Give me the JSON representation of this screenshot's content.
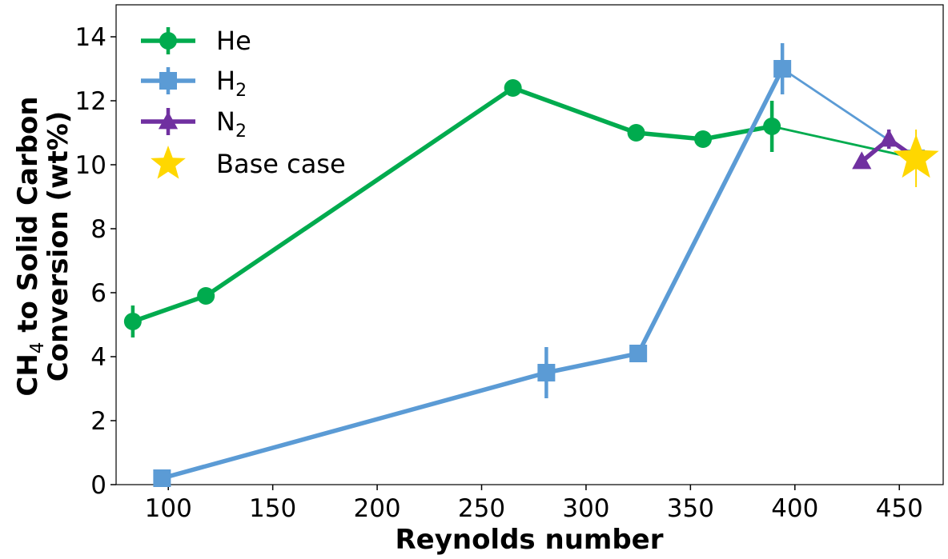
{
  "chart_data": {
    "type": "line",
    "xlabel": "Reynolds number",
    "ylabel_line1_parts": [
      "CH",
      "4",
      " to Solid Carbon"
    ],
    "ylabel_line2": "Conversion (wt%)",
    "xlim": [
      75,
      471
    ],
    "ylim": [
      0,
      15
    ],
    "xticks": [
      100,
      150,
      200,
      250,
      300,
      350,
      400,
      450
    ],
    "yticks": [
      0,
      2,
      4,
      6,
      8,
      10,
      12,
      14
    ],
    "grid": false,
    "legend_position": "top-left",
    "series": [
      {
        "key": "he",
        "name": "He",
        "color": "#00ab4e",
        "marker": "circle",
        "points": [
          {
            "x": 83,
            "y": 5.1,
            "err": 0.5
          },
          {
            "x": 118,
            "y": 5.9,
            "err": 0
          },
          {
            "x": 265,
            "y": 12.4,
            "err": 0
          },
          {
            "x": 324,
            "y": 11.0,
            "err": 0
          },
          {
            "x": 356,
            "y": 10.8,
            "err": 0
          },
          {
            "x": 389,
            "y": 11.2,
            "err": 0.8
          },
          {
            "x": 458,
            "y": 10.2,
            "err": 0
          }
        ],
        "segment_widths": [
          "thick",
          "thick",
          "thick",
          "thick",
          "thick",
          "thin"
        ]
      },
      {
        "key": "h2",
        "name": "H",
        "name_sub": "2",
        "color": "#5b9bd5",
        "marker": "square",
        "points": [
          {
            "x": 97,
            "y": 0.2,
            "err": 0
          },
          {
            "x": 281,
            "y": 3.5,
            "err": 0.8
          },
          {
            "x": 325,
            "y": 4.1,
            "err": 0
          },
          {
            "x": 394,
            "y": 13.0,
            "err": 0.8
          },
          {
            "x": 458,
            "y": 10.2,
            "err": 0
          }
        ],
        "segment_widths": [
          "thick",
          "thick",
          "thick",
          "thin"
        ]
      },
      {
        "key": "n2",
        "name": "N",
        "name_sub": "2",
        "color": "#7030a0",
        "marker": "triangle",
        "points": [
          {
            "x": 432,
            "y": 10.1,
            "err": 0
          },
          {
            "x": 445,
            "y": 10.8,
            "err": 0.3
          },
          {
            "x": 458,
            "y": 10.2,
            "err": 0
          }
        ],
        "segment_widths": [
          "thick",
          "thick"
        ]
      },
      {
        "key": "base",
        "name": "Base case",
        "color": "#ffd700",
        "marker": "star",
        "points": [
          {
            "x": 458,
            "y": 10.2,
            "err": 0.9
          }
        ]
      }
    ]
  }
}
